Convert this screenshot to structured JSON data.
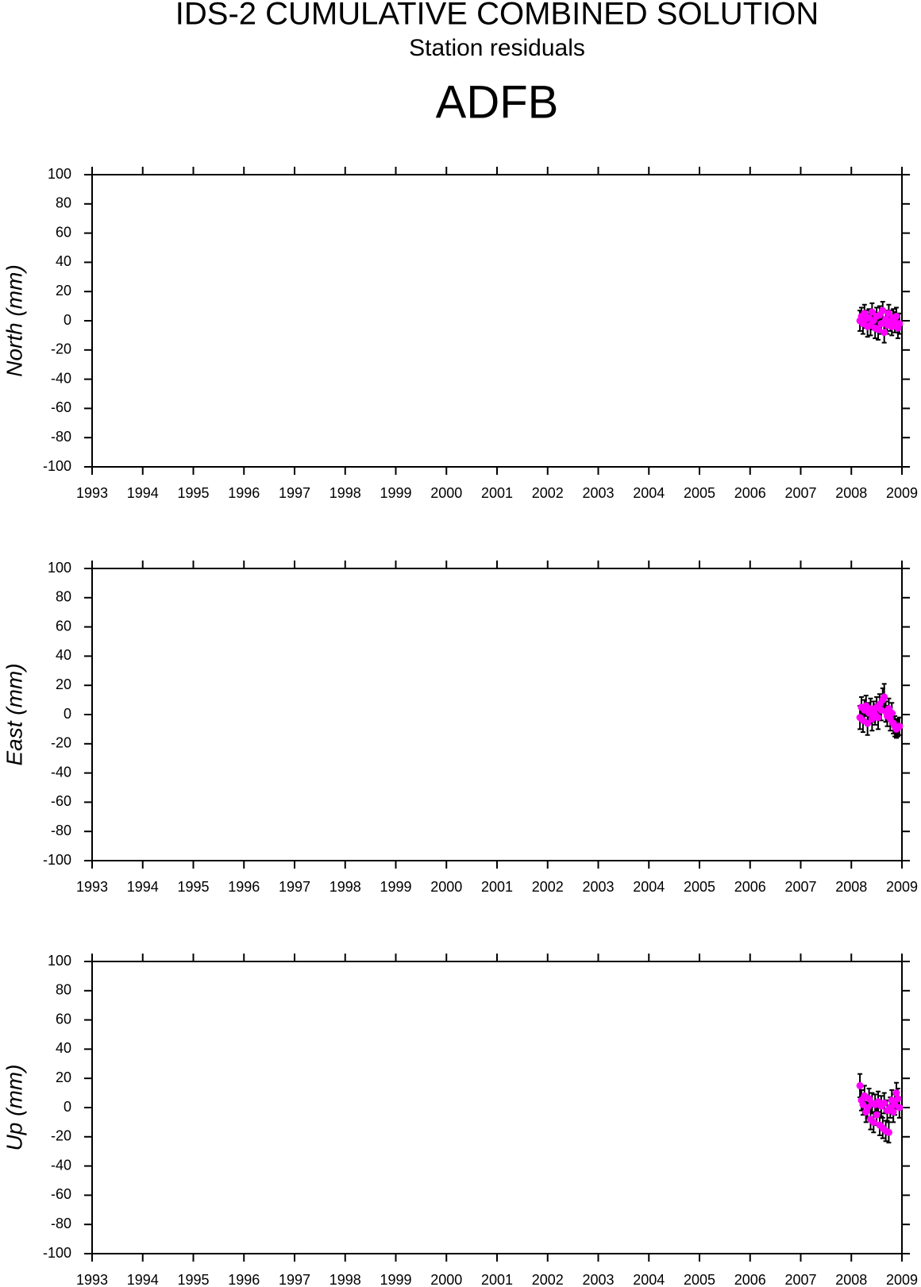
{
  "title": "IDS-2 CUMULATIVE COMBINED SOLUTION",
  "subtitle": "Station residuals",
  "station": "ADFB",
  "chart_data": [
    {
      "type": "scatter",
      "ylabel": "North (mm)",
      "color": "#ff00ff",
      "error_color": "#000000",
      "x": [
        2008.17,
        2008.2,
        2008.23,
        2008.26,
        2008.29,
        2008.32,
        2008.35,
        2008.38,
        2008.41,
        2008.44,
        2008.47,
        2008.5,
        2008.53,
        2008.56,
        2008.59,
        2008.62,
        2008.65,
        2008.68,
        2008.71,
        2008.74,
        2008.77,
        2008.8,
        2008.83,
        2008.86,
        2008.89,
        2008.92,
        2008.95
      ],
      "values": [
        0,
        3,
        -2,
        5,
        1,
        -4,
        2,
        -3,
        6,
        0,
        -5,
        3,
        -6,
        4,
        -2,
        7,
        -8,
        1,
        -3,
        5,
        0,
        -4,
        2,
        -1,
        3,
        -5,
        -2
      ],
      "errors": [
        7,
        6,
        7,
        6,
        6,
        7,
        6,
        7,
        6,
        6,
        7,
        6,
        7,
        6,
        7,
        6,
        7,
        6,
        6,
        6,
        7,
        6,
        6,
        7,
        6,
        7,
        7
      ],
      "xlim": [
        1993,
        2009
      ],
      "ylim": [
        -100,
        100
      ],
      "xticks": [
        1993,
        1994,
        1995,
        1996,
        1997,
        1998,
        1999,
        2000,
        2001,
        2002,
        2003,
        2004,
        2005,
        2006,
        2007,
        2008,
        2009
      ],
      "yticks": [
        -100,
        -80,
        -60,
        -40,
        -20,
        0,
        20,
        40,
        60,
        80,
        100
      ]
    },
    {
      "type": "scatter",
      "ylabel": "East (mm)",
      "color": "#ff00ff",
      "error_color": "#000000",
      "x": [
        2008.17,
        2008.2,
        2008.23,
        2008.26,
        2008.29,
        2008.32,
        2008.35,
        2008.38,
        2008.41,
        2008.44,
        2008.47,
        2008.5,
        2008.53,
        2008.56,
        2008.59,
        2008.62,
        2008.65,
        2008.68,
        2008.71,
        2008.74,
        2008.77,
        2008.8,
        2008.83,
        2008.86,
        2008.89,
        2008.92,
        2008.95
      ],
      "values": [
        -2,
        5,
        -4,
        3,
        6,
        -6,
        1,
        4,
        -3,
        2,
        0,
        5,
        -2,
        7,
        3,
        10,
        12,
        2,
        -1,
        4,
        -3,
        1,
        -6,
        -8,
        -10,
        -9,
        -8
      ],
      "errors": [
        8,
        7,
        8,
        7,
        7,
        8,
        7,
        7,
        8,
        7,
        7,
        7,
        8,
        7,
        7,
        8,
        9,
        7,
        7,
        7,
        8,
        7,
        7,
        7,
        6,
        6,
        6
      ],
      "xlim": [
        1993,
        2009
      ],
      "ylim": [
        -100,
        100
      ],
      "xticks": [
        1993,
        1994,
        1995,
        1996,
        1997,
        1998,
        1999,
        2000,
        2001,
        2002,
        2003,
        2004,
        2005,
        2006,
        2007,
        2008,
        2009
      ],
      "yticks": [
        -100,
        -80,
        -60,
        -40,
        -20,
        0,
        20,
        40,
        60,
        80,
        100
      ]
    },
    {
      "type": "scatter",
      "ylabel": "Up (mm)",
      "color": "#ff00ff",
      "error_color": "#000000",
      "x": [
        2008.17,
        2008.2,
        2008.23,
        2008.26,
        2008.29,
        2008.32,
        2008.35,
        2008.38,
        2008.41,
        2008.44,
        2008.47,
        2008.5,
        2008.53,
        2008.56,
        2008.59,
        2008.62,
        2008.65,
        2008.68,
        2008.71,
        2008.74,
        2008.77,
        2008.8,
        2008.83,
        2008.86,
        2008.89,
        2008.92,
        2008.95
      ],
      "values": [
        15,
        5,
        2,
        8,
        -3,
        0,
        6,
        -8,
        3,
        -10,
        2,
        -5,
        4,
        -12,
        1,
        -14,
        3,
        -16,
        -2,
        -17,
        0,
        5,
        -3,
        2,
        10,
        6,
        0
      ],
      "errors": [
        8,
        7,
        7,
        7,
        7,
        7,
        7,
        7,
        7,
        7,
        7,
        7,
        7,
        7,
        7,
        7,
        7,
        7,
        7,
        7,
        7,
        7,
        7,
        7,
        7,
        7,
        7
      ],
      "xlim": [
        1993,
        2009
      ],
      "ylim": [
        -100,
        100
      ],
      "xticks": [
        1993,
        1994,
        1995,
        1996,
        1997,
        1998,
        1999,
        2000,
        2001,
        2002,
        2003,
        2004,
        2005,
        2006,
        2007,
        2008,
        2009
      ],
      "yticks": [
        -100,
        -80,
        -60,
        -40,
        -20,
        0,
        20,
        40,
        60,
        80,
        100
      ]
    }
  ]
}
